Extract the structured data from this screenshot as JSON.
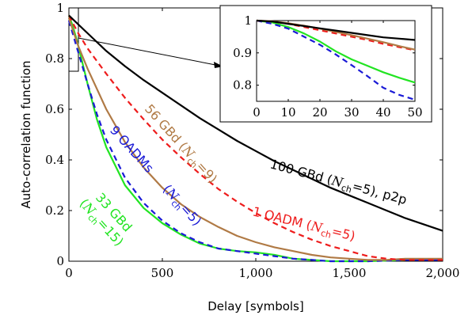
{
  "chart_data": {
    "type": "line",
    "xlabel": "Delay [symbols]",
    "ylabel": "Auto-correlation function",
    "xlim": [
      0,
      2000
    ],
    "ylim": [
      0,
      1
    ],
    "x_ticks": [
      "0",
      "500",
      "1,000",
      "1,500",
      "2,000"
    ],
    "y_ticks": [
      "0",
      "0.2",
      "0.4",
      "0.6",
      "0.8",
      "1"
    ],
    "grid": false,
    "colors": {
      "p2p100": "#000000",
      "oadm1": "#ee1c1c",
      "gbd56": "#b07a45",
      "oadm9": "#1a1ad6",
      "gbd33": "#22e422"
    },
    "series": [
      {
        "key": "p2p100",
        "dashed": false,
        "x": [
          0,
          50,
          100,
          200,
          300,
          400,
          500,
          600,
          700,
          800,
          900,
          1000,
          1100,
          1200,
          1300,
          1400,
          1500,
          1600,
          1700,
          1800,
          1900,
          2000
        ],
        "y": [
          0.97,
          0.935,
          0.9,
          0.83,
          0.77,
          0.715,
          0.665,
          0.615,
          0.565,
          0.52,
          0.475,
          0.435,
          0.395,
          0.36,
          0.325,
          0.29,
          0.26,
          0.23,
          0.2,
          0.17,
          0.145,
          0.12
        ]
      },
      {
        "key": "oadm1",
        "dashed": true,
        "x": [
          0,
          50,
          100,
          200,
          300,
          400,
          500,
          600,
          700,
          800,
          900,
          1000,
          1100,
          1200,
          1300,
          1400,
          1500,
          1600,
          1700,
          1800,
          1900,
          2000
        ],
        "y": [
          0.97,
          0.9,
          0.84,
          0.74,
          0.645,
          0.56,
          0.48,
          0.41,
          0.345,
          0.285,
          0.235,
          0.19,
          0.15,
          0.115,
          0.085,
          0.06,
          0.04,
          0.02,
          0.01,
          0.005,
          0.005,
          0.005
        ]
      },
      {
        "key": "gbd56",
        "dashed": false,
        "x": [
          0,
          50,
          100,
          200,
          300,
          400,
          500,
          600,
          700,
          800,
          900,
          1000,
          1100,
          1200,
          1300,
          1400,
          1500,
          1600,
          1700,
          1800,
          1900,
          2000
        ],
        "y": [
          0.96,
          0.85,
          0.76,
          0.6,
          0.47,
          0.37,
          0.29,
          0.225,
          0.175,
          0.135,
          0.1,
          0.075,
          0.055,
          0.04,
          0.025,
          0.015,
          0.01,
          0.005,
          0.005,
          0.01,
          0.01,
          0.01
        ]
      },
      {
        "key": "oadm9",
        "dashed": true,
        "x": [
          0,
          20,
          40,
          60,
          80,
          100,
          150,
          200,
          300,
          400,
          500,
          600,
          700,
          800,
          900,
          1000,
          1100,
          1200,
          1400,
          1600,
          1800,
          2000
        ],
        "y": [
          0.95,
          0.9,
          0.85,
          0.8,
          0.75,
          0.7,
          0.58,
          0.48,
          0.33,
          0.23,
          0.16,
          0.11,
          0.075,
          0.05,
          0.04,
          0.03,
          0.02,
          0.01,
          0.0,
          0.0,
          0.005,
          0.005
        ]
      },
      {
        "key": "gbd33",
        "dashed": false,
        "x": [
          0,
          20,
          40,
          60,
          80,
          100,
          150,
          200,
          300,
          400,
          500,
          600,
          700,
          800,
          900,
          1000,
          1100,
          1200,
          1400,
          1600,
          1800,
          2000
        ],
        "y": [
          0.97,
          0.93,
          0.88,
          0.82,
          0.76,
          0.7,
          0.56,
          0.45,
          0.3,
          0.21,
          0.15,
          0.105,
          0.07,
          0.05,
          0.04,
          0.035,
          0.025,
          0.01,
          0.0,
          0.0,
          0.005,
          0.005
        ]
      }
    ],
    "annotations": [
      {
        "key": "p2p100",
        "main": "100 GBd (",
        "nch_sym": "N",
        "nch_sub": "ch",
        "nch_eq": "=5), p2p"
      },
      {
        "key": "oadm1",
        "main": "1 OADM (",
        "nch_sym": "N",
        "nch_sub": "ch",
        "nch_eq": "=5)"
      },
      {
        "key": "gbd56",
        "main": "56 GBd (",
        "nch_sym": "N",
        "nch_sub": "ch",
        "nch_eq": "=9)"
      },
      {
        "key": "oadm9",
        "line1": "9 OADMs",
        "line2_open": "(",
        "nch_sym": "N",
        "nch_sub": "ch",
        "nch_eq": "=5)"
      },
      {
        "key": "gbd33",
        "line1": "33 GBd",
        "line2_open": "(",
        "nch_sym": "N",
        "nch_sub": "ch",
        "nch_eq": "=15)"
      }
    ],
    "inset": {
      "xlim": [
        0,
        50
      ],
      "ylim": [
        0.75,
        1
      ],
      "x_ticks": [
        "0",
        "10",
        "20",
        "30",
        "40",
        "50"
      ],
      "y_ticks": [
        "0.8",
        "0.9",
        "1"
      ],
      "series": [
        {
          "key": "p2p100",
          "dashed": false,
          "x": [
            0,
            5,
            10,
            15,
            20,
            25,
            30,
            35,
            40,
            45,
            50
          ],
          "y": [
            1.0,
            0.997,
            0.99,
            0.983,
            0.976,
            0.969,
            0.962,
            0.955,
            0.948,
            0.944,
            0.94
          ]
        },
        {
          "key": "oadm1",
          "dashed": true,
          "x": [
            0,
            5,
            10,
            15,
            20,
            25,
            30,
            35,
            40,
            45,
            50
          ],
          "y": [
            1.0,
            0.997,
            0.99,
            0.98,
            0.97,
            0.96,
            0.95,
            0.94,
            0.928,
            0.918,
            0.908
          ]
        },
        {
          "key": "gbd56",
          "dashed": false,
          "x": [
            0,
            5,
            10,
            15,
            20,
            25,
            30,
            35,
            40,
            45,
            50
          ],
          "y": [
            1.0,
            0.998,
            0.992,
            0.984,
            0.975,
            0.965,
            0.955,
            0.944,
            0.933,
            0.921,
            0.91
          ]
        },
        {
          "key": "gbd33",
          "dashed": false,
          "x": [
            0,
            5,
            10,
            15,
            20,
            25,
            30,
            35,
            40,
            45,
            50
          ],
          "y": [
            1.0,
            0.994,
            0.98,
            0.96,
            0.935,
            0.905,
            0.88,
            0.86,
            0.84,
            0.823,
            0.808
          ]
        },
        {
          "key": "oadm9",
          "dashed": true,
          "x": [
            0,
            5,
            10,
            15,
            20,
            25,
            30,
            35,
            40,
            45,
            50
          ],
          "y": [
            1.0,
            0.99,
            0.975,
            0.95,
            0.925,
            0.895,
            0.862,
            0.828,
            0.792,
            0.77,
            0.755
          ]
        }
      ]
    }
  }
}
